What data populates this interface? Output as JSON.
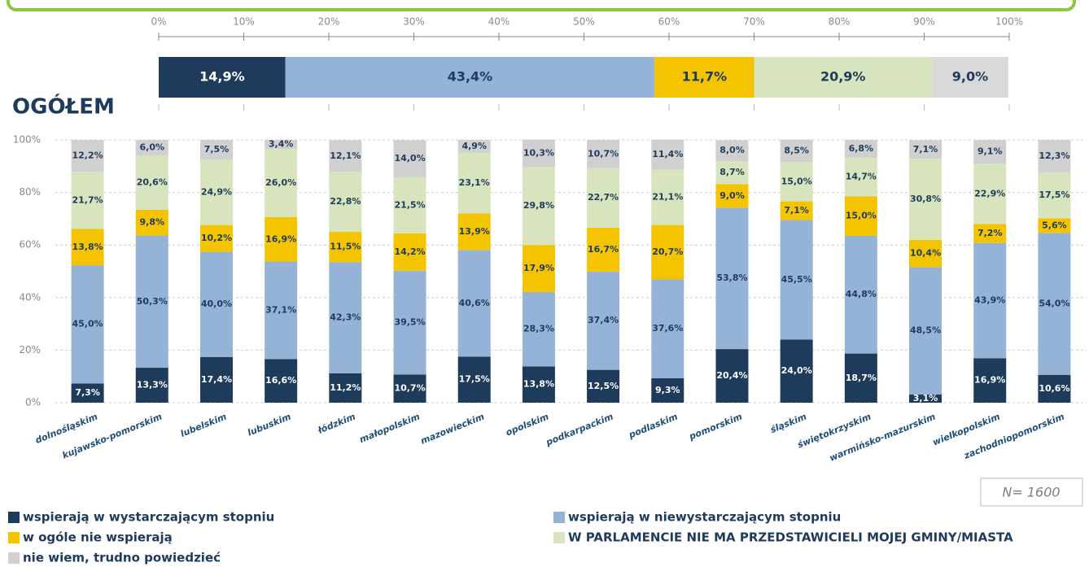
{
  "chart_data": [
    {
      "type": "bar",
      "orientation": "horizontal",
      "categories": [
        "OGÓŁEM"
      ],
      "xlim": [
        0,
        100
      ],
      "xticks": [
        {
          "value": 0,
          "label": "0%"
        },
        {
          "value": 10,
          "label": "10%"
        },
        {
          "value": 20,
          "label": "20%"
        },
        {
          "value": 30,
          "label": "30%"
        },
        {
          "value": 40,
          "label": "40%"
        },
        {
          "value": 50,
          "label": "50%"
        },
        {
          "value": 60,
          "label": "60%"
        },
        {
          "value": 70,
          "label": "70%"
        },
        {
          "value": 80,
          "label": "80%"
        },
        {
          "value": 90,
          "label": "90%"
        },
        {
          "value": 100,
          "label": "100%"
        }
      ],
      "stacked": true,
      "series": [
        {
          "color": "#1f3b5c",
          "values": [
            14.9
          ],
          "value_labels": [
            "14,9%"
          ]
        },
        {
          "color": "#95b3d7",
          "values": [
            43.4
          ],
          "value_labels": [
            "43,4%"
          ]
        },
        {
          "color": "#f5c400",
          "values": [
            11.7
          ],
          "value_labels": [
            "11,7%"
          ]
        },
        {
          "color": "#d7e4bd",
          "values": [
            20.9
          ],
          "value_labels": [
            "20,9%"
          ]
        },
        {
          "color": "#d9d9d9",
          "values": [
            9.0
          ],
          "value_labels": [
            "9,0%"
          ]
        }
      ]
    },
    {
      "type": "bar",
      "orientation": "vertical",
      "stacked": true,
      "grid": true,
      "annotation": "N= 1600",
      "categories": [
        "dolnośląskim",
        "kujawsko-pomorskim",
        "lubelskim",
        "lubuskim",
        "łódzkim",
        "małopolskim",
        "mazowieckim",
        "opolskim",
        "podkarpackim",
        "podlaskim",
        "pomorskim",
        "śląskim",
        "świętokrzyskim",
        "warmińsko-mazurskim",
        "wielkopolskim",
        "zachodniopomorskim"
      ],
      "ylim": [
        0,
        100
      ],
      "yticks": [
        {
          "value": 0,
          "label": "0%"
        },
        {
          "value": 20,
          "label": "20%"
        },
        {
          "value": 40,
          "label": "40%"
        },
        {
          "value": 60,
          "label": "60%"
        },
        {
          "value": 80,
          "label": "80%"
        },
        {
          "value": 100,
          "label": "100%"
        }
      ],
      "series": [
        {
          "name": "wspierają w wystarczającym stopniu",
          "color": "#1f3b5c",
          "values": [
            7.3,
            13.3,
            17.4,
            16.6,
            11.2,
            10.7,
            17.5,
            13.8,
            12.5,
            9.3,
            20.4,
            24.0,
            18.7,
            3.1,
            16.9,
            10.6
          ],
          "value_labels": [
            "7,3%",
            "13,3%",
            "17,4%",
            "16,6%",
            "11,2%",
            "10,7%",
            "17,5%",
            "13,8%",
            "12,5%",
            "9,3%",
            "20,4%",
            "24,0%",
            "18,7%",
            "3,1%",
            "16,9%",
            "10,6%"
          ]
        },
        {
          "name": "wspierają w niewystarczającym stopniu",
          "color": "#95b3d7",
          "values": [
            45.0,
            50.3,
            40.0,
            37.1,
            42.3,
            39.5,
            40.6,
            28.3,
            37.4,
            37.6,
            53.8,
            45.5,
            44.8,
            48.5,
            43.9,
            54.0
          ],
          "value_labels": [
            "45,0%",
            "50,3%",
            "40,0%",
            "37,1%",
            "42,3%",
            "39,5%",
            "40,6%",
            "28,3%",
            "37,4%",
            "37,6%",
            "53,8%",
            "45,5%",
            "44,8%",
            "48,5%",
            "43,9%",
            "54,0%"
          ]
        },
        {
          "name": "w ogóle nie wspierają",
          "color": "#f5c400",
          "values": [
            13.8,
            9.8,
            10.2,
            16.9,
            11.5,
            14.2,
            13.9,
            17.9,
            16.7,
            20.7,
            9.0,
            7.1,
            15.0,
            10.4,
            7.2,
            5.6
          ],
          "value_labels": [
            "13,8%",
            "9,8%",
            "10,2%",
            "16,9%",
            "11,5%",
            "14,2%",
            "13,9%",
            "17,9%",
            "16,7%",
            "20,7%",
            "9,0%",
            "7,1%",
            "15,0%",
            "10,4%",
            "7,2%",
            "5,6%"
          ]
        },
        {
          "name": "W PARLAMENCIE NIE MA PRZEDSTAWICIELI MOJEJ GMINY/MIASTA",
          "color": "#d7e4bd",
          "values": [
            21.7,
            20.6,
            24.9,
            26.0,
            22.8,
            21.5,
            23.1,
            29.8,
            22.7,
            21.1,
            8.7,
            15.0,
            14.7,
            30.8,
            22.9,
            17.5
          ],
          "value_labels": [
            "21,7%",
            "20,6%",
            "24,9%",
            "26,0%",
            "22,8%",
            "21,5%",
            "23,1%",
            "29,8%",
            "22,7%",
            "21,1%",
            "8,7%",
            "15,0%",
            "14,7%",
            "30,8%",
            "22,9%",
            "17,5%"
          ]
        },
        {
          "name": "nie wiem, trudno powiedzieć",
          "color": "#d0d0d0",
          "values": [
            12.2,
            6.0,
            7.5,
            3.4,
            12.1,
            14.0,
            4.9,
            10.3,
            10.7,
            11.4,
            8.0,
            8.5,
            6.8,
            7.1,
            9.1,
            12.3
          ],
          "value_labels": [
            "12,2%",
            "6,0%",
            "7,5%",
            "3,4%",
            "12,1%",
            "14,0%",
            "4,9%",
            "10,3%",
            "10,7%",
            "11,4%",
            "8,0%",
            "8,5%",
            "6,8%",
            "7,1%",
            "9,1%",
            "12,3%"
          ]
        }
      ]
    }
  ]
}
